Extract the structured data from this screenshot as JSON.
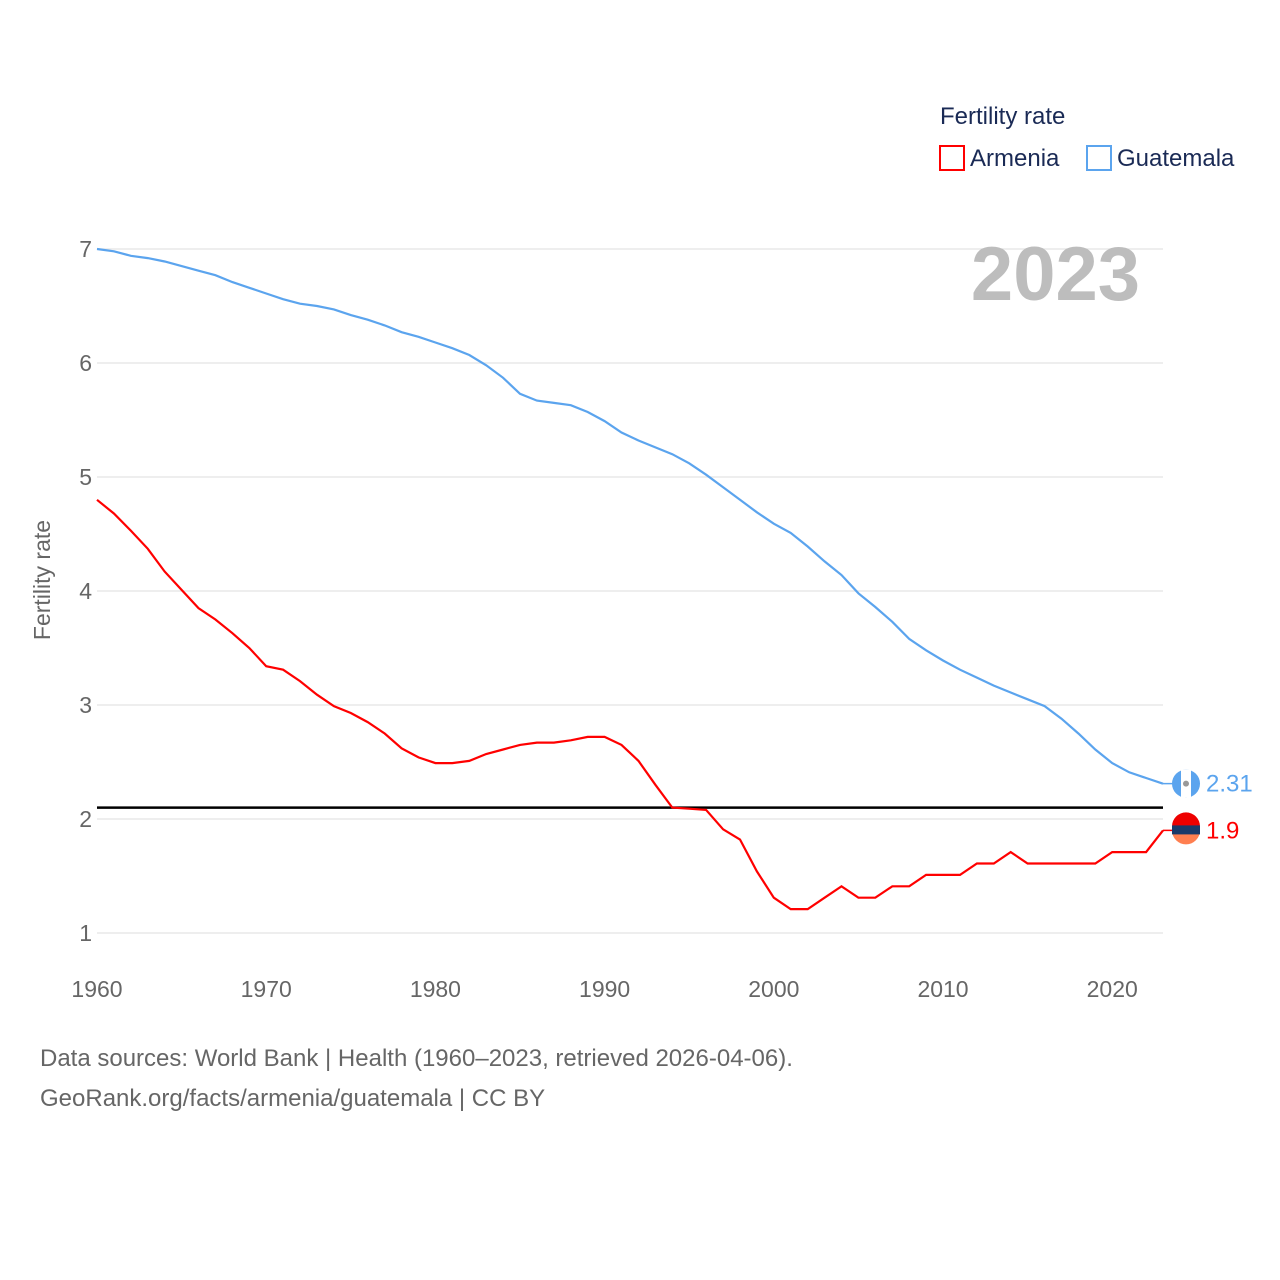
{
  "chart_data": {
    "type": "line",
    "title": "",
    "xlabel": "",
    "ylabel": "Fertility rate",
    "year_label": "2023",
    "xlim": [
      1960,
      2023
    ],
    "ylim": [
      1,
      7
    ],
    "x_ticks": [
      1960,
      1970,
      1980,
      1990,
      2000,
      2010,
      2020
    ],
    "y_ticks": [
      1,
      2,
      3,
      4,
      5,
      6,
      7
    ],
    "grid": true,
    "legend": {
      "title": "Fertility rate",
      "placement": "top-right"
    },
    "reference_line": {
      "y": 2.1,
      "color": "#000000"
    },
    "x": [
      1960,
      1961,
      1962,
      1963,
      1964,
      1965,
      1966,
      1967,
      1968,
      1969,
      1970,
      1971,
      1972,
      1973,
      1974,
      1975,
      1976,
      1977,
      1978,
      1979,
      1980,
      1981,
      1982,
      1983,
      1984,
      1985,
      1986,
      1987,
      1988,
      1989,
      1990,
      1991,
      1992,
      1993,
      1994,
      1995,
      1996,
      1997,
      1998,
      1999,
      2000,
      2001,
      2002,
      2003,
      2004,
      2005,
      2006,
      2007,
      2008,
      2009,
      2010,
      2011,
      2012,
      2013,
      2014,
      2015,
      2016,
      2017,
      2018,
      2019,
      2020,
      2021,
      2022,
      2023
    ],
    "series": [
      {
        "name": "Armenia",
        "color": "#ff0000",
        "end_label": "1.9",
        "values": [
          4.8,
          4.68,
          4.53,
          4.37,
          4.17,
          4.01,
          3.85,
          3.75,
          3.63,
          3.5,
          3.34,
          3.31,
          3.21,
          3.09,
          2.99,
          2.93,
          2.85,
          2.75,
          2.62,
          2.54,
          2.49,
          2.49,
          2.51,
          2.57,
          2.61,
          2.65,
          2.67,
          2.67,
          2.69,
          2.72,
          2.72,
          2.65,
          2.51,
          2.3,
          2.1,
          2.09,
          2.08,
          1.91,
          1.82,
          1.54,
          1.31,
          1.21,
          1.21,
          1.31,
          1.41,
          1.31,
          1.31,
          1.41,
          1.41,
          1.51,
          1.51,
          1.51,
          1.61,
          1.61,
          1.71,
          1.61,
          1.61,
          1.61,
          1.61,
          1.61,
          1.71,
          1.71,
          1.71,
          1.9
        ]
      },
      {
        "name": "Guatemala",
        "color": "#5ba4ee",
        "end_label": "2.31",
        "values": [
          7.0,
          6.98,
          6.94,
          6.92,
          6.89,
          6.85,
          6.81,
          6.77,
          6.71,
          6.66,
          6.61,
          6.56,
          6.52,
          6.5,
          6.47,
          6.42,
          6.38,
          6.33,
          6.27,
          6.23,
          6.18,
          6.13,
          6.07,
          5.98,
          5.87,
          5.73,
          5.67,
          5.65,
          5.63,
          5.57,
          5.49,
          5.39,
          5.32,
          5.26,
          5.2,
          5.12,
          5.02,
          4.91,
          4.8,
          4.69,
          4.59,
          4.51,
          4.39,
          4.26,
          4.14,
          3.98,
          3.86,
          3.73,
          3.58,
          3.48,
          3.39,
          3.31,
          3.24,
          3.17,
          3.11,
          3.05,
          2.99,
          2.88,
          2.75,
          2.61,
          2.49,
          2.41,
          2.36,
          2.31
        ]
      }
    ]
  },
  "footer": {
    "line1": "Data sources: World Bank | Health (1960–2023, retrieved 2026-04-06).",
    "line2": "GeoRank.org/facts/armenia/guatemala | CC BY"
  }
}
